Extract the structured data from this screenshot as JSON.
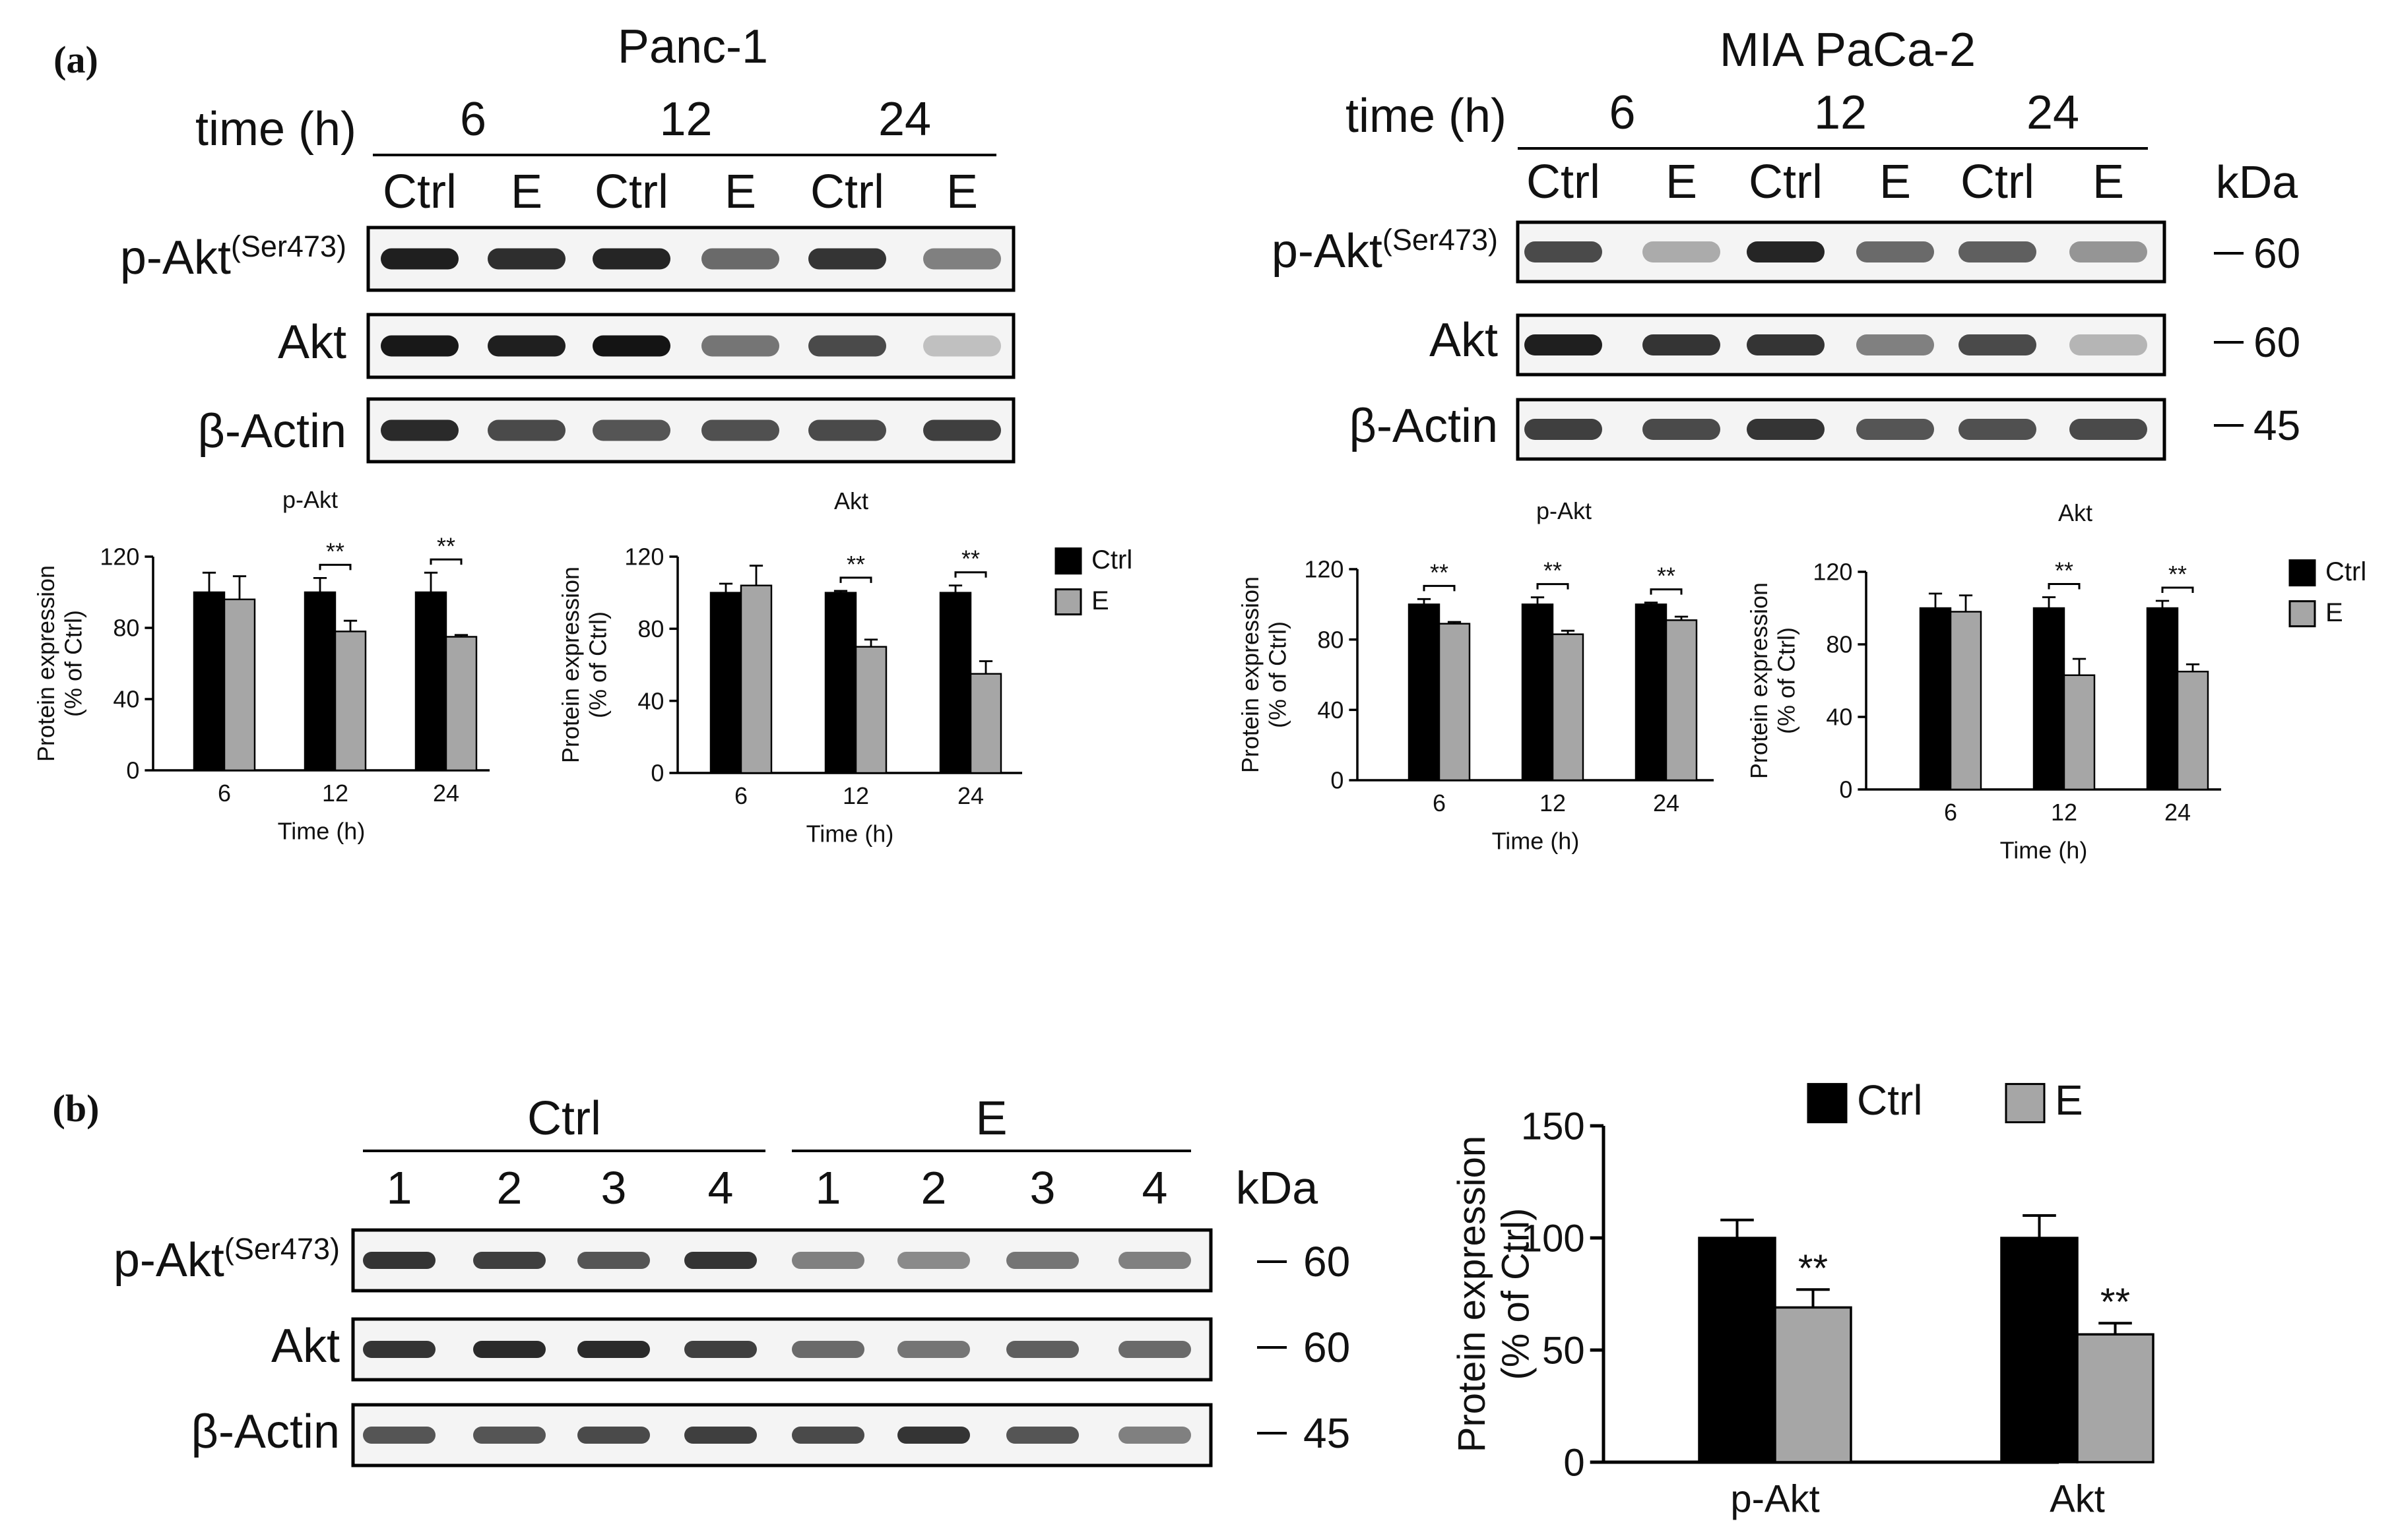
{
  "panel_a": {
    "label": "(a)",
    "blots": [
      {
        "cell_line": "Panc-1",
        "time_label": "time (h)",
        "times": [
          "6",
          "12",
          "24"
        ],
        "lanes": [
          "Ctrl",
          "E",
          "Ctrl",
          "E",
          "Ctrl",
          "E"
        ],
        "rows": [
          {
            "label": "p-Akt",
            "sup": "(Ser473)",
            "intensity": [
              0.95,
              0.88,
              0.92,
              0.6,
              0.85,
              0.5
            ]
          },
          {
            "label": "Akt",
            "sup": "",
            "intensity": [
              0.98,
              0.95,
              1.0,
              0.55,
              0.75,
              0.2
            ]
          },
          {
            "label": "β-Actin",
            "sup": "",
            "intensity": [
              0.9,
              0.75,
              0.7,
              0.72,
              0.75,
              0.8
            ]
          }
        ]
      },
      {
        "cell_line": "MIA PaCa-2",
        "time_label": "time (h)",
        "times": [
          "6",
          "12",
          "24"
        ],
        "lanes": [
          "Ctrl",
          "E",
          "Ctrl",
          "E",
          "Ctrl",
          "E"
        ],
        "kda_title": "kDa",
        "kda": [
          "60",
          "60",
          "45"
        ],
        "rows": [
          {
            "label": "p-Akt",
            "sup": "(Ser473)",
            "intensity": [
              0.75,
              0.3,
              0.92,
              0.6,
              0.65,
              0.4
            ]
          },
          {
            "label": "Akt",
            "sup": "",
            "intensity": [
              0.95,
              0.85,
              0.85,
              0.5,
              0.75,
              0.25
            ]
          },
          {
            "label": "β-Actin",
            "sup": "",
            "intensity": [
              0.8,
              0.75,
              0.85,
              0.7,
              0.72,
              0.75
            ]
          }
        ]
      }
    ]
  },
  "panel_b": {
    "label": "(b)",
    "groups": [
      "Ctrl",
      "E"
    ],
    "lanes": [
      "1",
      "2",
      "3",
      "4",
      "1",
      "2",
      "3",
      "4"
    ],
    "kda_title": "kDa",
    "kda": [
      "60",
      "60",
      "45"
    ],
    "rows": [
      {
        "label": "p-Akt",
        "sup": "(Ser473)",
        "intensity": [
          0.85,
          0.8,
          0.7,
          0.85,
          0.5,
          0.45,
          0.55,
          0.5
        ]
      },
      {
        "label": "Akt",
        "sup": "",
        "intensity": [
          0.85,
          0.9,
          0.9,
          0.8,
          0.6,
          0.55,
          0.65,
          0.6
        ]
      },
      {
        "label": "β-Actin",
        "sup": "",
        "intensity": [
          0.7,
          0.7,
          0.75,
          0.8,
          0.75,
          0.85,
          0.7,
          0.5
        ]
      }
    ]
  },
  "colors": {
    "ctrl": "#000000",
    "e": "#a6a6a6",
    "band": "#1a1a1a"
  },
  "chart_data": [
    {
      "type": "bar",
      "title": "p-Akt",
      "xlabel": "Time (h)",
      "ylabel": "Protein expression\n(% of Ctrl)",
      "ylim": [
        0,
        120
      ],
      "yticks": [
        0,
        40,
        80,
        120
      ],
      "categories": [
        "6",
        "12",
        "24"
      ],
      "series": [
        {
          "name": "Ctrl",
          "values": [
            100,
            100,
            100
          ],
          "err": [
            11,
            8,
            11
          ]
        },
        {
          "name": "E",
          "values": [
            96,
            78,
            75
          ],
          "err": [
            13,
            6,
            1
          ]
        }
      ],
      "significance": [
        "",
        "**",
        "**"
      ],
      "legend": {
        "items": [
          "Ctrl",
          "E"
        ],
        "position": "right"
      }
    },
    {
      "type": "bar",
      "title": "Akt",
      "xlabel": "Time (h)",
      "ylabel": "Protein expression\n(% of Ctrl)",
      "ylim": [
        0,
        120
      ],
      "yticks": [
        0,
        40,
        80,
        120
      ],
      "categories": [
        "6",
        "12",
        "24"
      ],
      "series": [
        {
          "name": "Ctrl",
          "values": [
            100,
            100,
            100
          ],
          "err": [
            5,
            1,
            4
          ]
        },
        {
          "name": "E",
          "values": [
            104,
            70,
            55
          ],
          "err": [
            11,
            4,
            7
          ]
        }
      ],
      "significance": [
        "",
        "**",
        "**"
      ]
    },
    {
      "type": "bar",
      "title": "p-Akt",
      "xlabel": "Time (h)",
      "ylabel": "Protein expression\n(% of Ctrl)",
      "ylim": [
        0,
        120
      ],
      "yticks": [
        0,
        40,
        80,
        120
      ],
      "categories": [
        "6",
        "12",
        "24"
      ],
      "series": [
        {
          "name": "Ctrl",
          "values": [
            100,
            100,
            100
          ],
          "err": [
            3,
            4,
            1
          ]
        },
        {
          "name": "E",
          "values": [
            89,
            83,
            91
          ],
          "err": [
            1,
            2,
            2
          ]
        }
      ],
      "significance": [
        "**",
        "**",
        "**"
      ],
      "legend": {
        "items": [
          "Ctrl",
          "E"
        ],
        "position": "right"
      }
    },
    {
      "type": "bar",
      "title": "Akt",
      "xlabel": "Time (h)",
      "ylabel": "Protein expression\n(% of Ctrl)",
      "ylim": [
        0,
        120
      ],
      "yticks": [
        0,
        40,
        80,
        120
      ],
      "categories": [
        "6",
        "12",
        "24"
      ],
      "series": [
        {
          "name": "Ctrl",
          "values": [
            100,
            100,
            100
          ],
          "err": [
            8,
            6,
            4
          ]
        },
        {
          "name": "E",
          "values": [
            98,
            63,
            65
          ],
          "err": [
            9,
            9,
            4
          ]
        }
      ],
      "significance": [
        "",
        "**",
        "**"
      ]
    },
    {
      "type": "bar",
      "title": "",
      "xlabel": "",
      "ylabel": "Protein expression\n(% of Ctrl)",
      "ylim": [
        0,
        150
      ],
      "yticks": [
        0,
        50,
        100,
        150
      ],
      "categories": [
        "p-Akt",
        "Akt"
      ],
      "series": [
        {
          "name": "Ctrl",
          "values": [
            100,
            100
          ],
          "err": [
            8,
            10
          ]
        },
        {
          "name": "E",
          "values": [
            69,
            57
          ],
          "err": [
            8,
            5
          ]
        }
      ],
      "significance": [
        "**",
        "**"
      ],
      "legend": {
        "items": [
          "Ctrl",
          "E"
        ],
        "position": "top"
      }
    }
  ]
}
